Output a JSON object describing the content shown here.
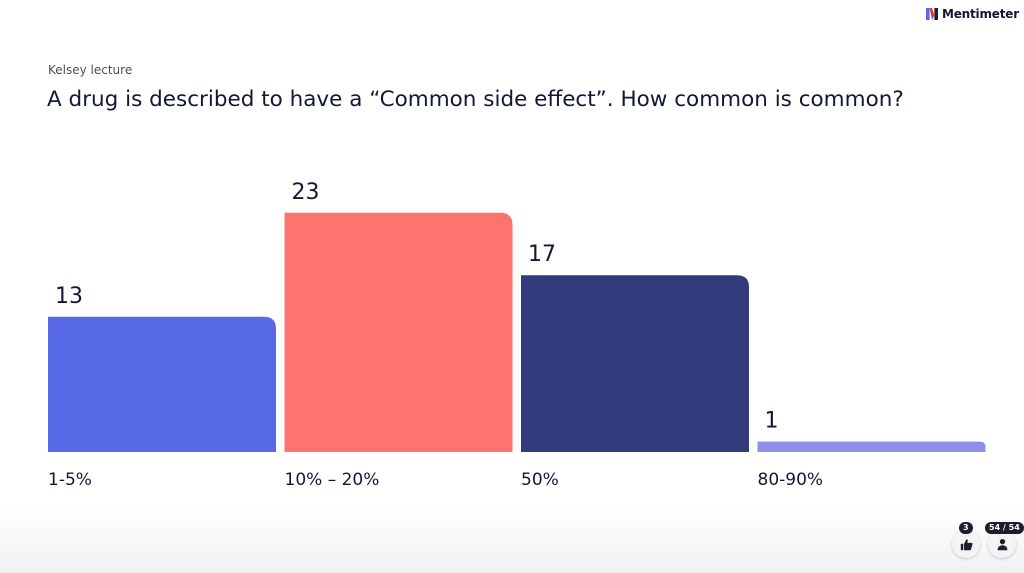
{
  "brand": {
    "name": "Mentimeter",
    "colors": [
      "#e8334a",
      "#5869e8",
      "#1c1f2b"
    ]
  },
  "presentation": {
    "subtitle": "Kelsey lecture",
    "question": "A drug is described to have a “Common side effect”. How common is common?"
  },
  "chart_data": {
    "type": "bar",
    "categories": [
      "1-5%",
      "10% – 20%",
      "50%",
      "80-90%"
    ],
    "values": [
      13,
      23,
      17,
      1
    ],
    "colors": [
      "#5769e6",
      "#ff7270",
      "#323b7b",
      "#8f8fea"
    ],
    "title": "A drug is described to have a “Common side effect”. How common is common?",
    "xlabel": "",
    "ylabel": "",
    "grid": false
  },
  "footer": {
    "reactions": {
      "icon": "thumbs-up-icon",
      "count": "3"
    },
    "participants": {
      "icon": "person-icon",
      "count": "54 / 54"
    }
  }
}
